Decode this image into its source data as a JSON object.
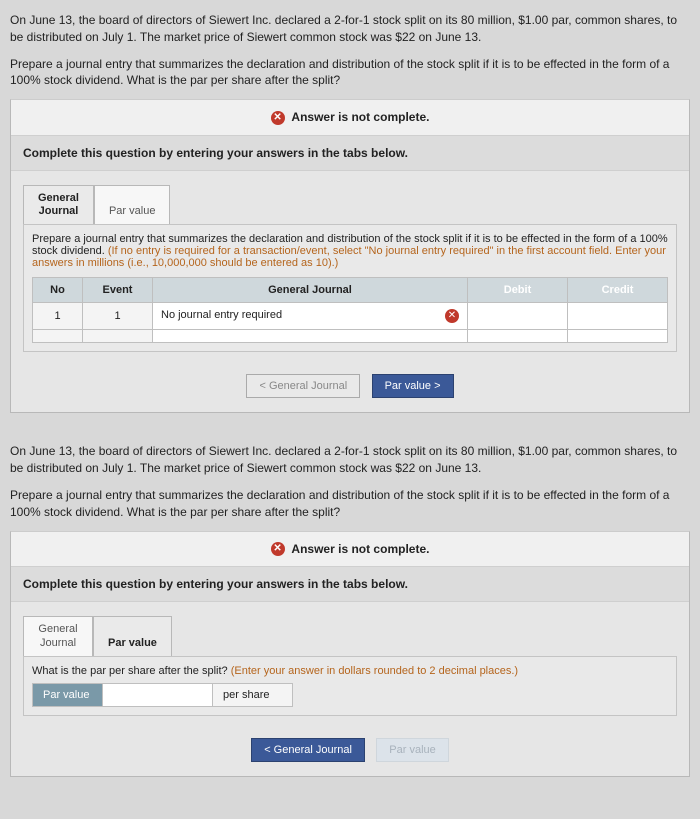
{
  "q1": {
    "prompt1": "On June 13, the board of directors of Siewert Inc. declared a 2-for-1 stock split on its 80 million, $1.00 par, common shares, to be distributed on July 1. The market price of Siewert common stock was $22 on June 13.",
    "prompt2": "Prepare a journal entry that summarizes the declaration and distribution of the stock split if it is to be effected in the form of a 100% stock dividend. What is the par per share after the split?",
    "notcomplete": "Answer is not complete.",
    "instr": "Complete this question by entering your answers in the tabs below.",
    "tab1_l1": "General",
    "tab1_l2": "Journal",
    "tab2": "Par value",
    "tabdesc_plain": "Prepare a journal entry that summarizes the declaration and distribution of the stock split if it is to be effected in the form of a 100% stock dividend. ",
    "tabdesc_orange": "(If no entry is required for a transaction/event, select \"No journal entry required\" in the first account field. Enter your answers in millions (i.e., 10,000,000 should be entered as 10).)",
    "th_no": "No",
    "th_event": "Event",
    "th_gj": "General Journal",
    "th_debit": "Debit",
    "th_credit": "Credit",
    "row_no": "1",
    "row_event": "1",
    "row_account": "No journal entry required",
    "nav_prev": "< General Journal",
    "nav_next": "Par value  >"
  },
  "q2": {
    "prompt1": "On June 13, the board of directors of Siewert Inc. declared a 2-for-1 stock split on its 80 million, $1.00 par, common shares, to be distributed on July 1. The market price of Siewert common stock was $22 on June 13.",
    "prompt2": "Prepare a journal entry that summarizes the declaration and distribution of the stock split if it is to be effected in the form of a 100% stock dividend. What is the par per share after the split?",
    "notcomplete": "Answer is not complete.",
    "instr": "Complete this question by entering your answers in the tabs below.",
    "tab1_l1": "General",
    "tab1_l2": "Journal",
    "tab2": "Par value",
    "tabdesc": "What is the par per share after the split? ",
    "tabdesc_orange": "(Enter your answer in dollars rounded to 2 decimal places.)",
    "pv_label": "Par value",
    "pv_unit": "per share",
    "nav_prev": "<  General Journal",
    "nav_next": "Par value"
  }
}
